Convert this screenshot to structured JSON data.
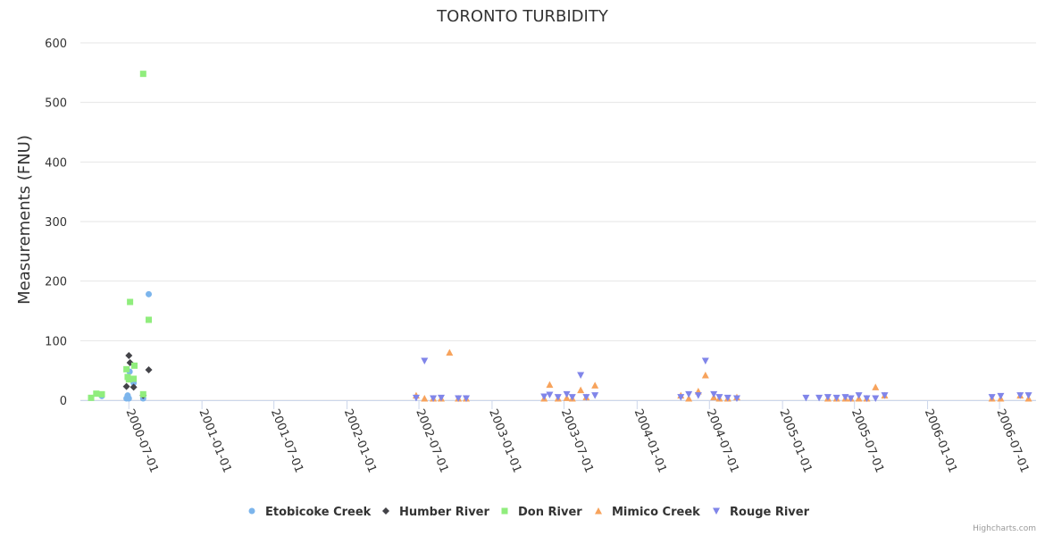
{
  "chart_data": {
    "type": "scatter",
    "title": "TORONTO TURBIDITY",
    "xlabel": "",
    "ylabel": "Measurements (FNU)",
    "xlim": [
      "2000-03-01",
      "2006-10-01"
    ],
    "ylim": [
      0,
      600
    ],
    "yticks": [
      0,
      100,
      200,
      300,
      400,
      500,
      600
    ],
    "xticks": [
      "2000-07-01",
      "2001-01-01",
      "2001-07-01",
      "2002-01-01",
      "2002-07-01",
      "2003-01-01",
      "2003-07-01",
      "2004-01-01",
      "2004-07-01",
      "2005-01-01",
      "2005-07-01",
      "2006-01-01",
      "2006-07-01"
    ],
    "grid": true,
    "legend_position": "bottom",
    "credits": "Highcharts.com",
    "series": [
      {
        "name": "Etobicoke Creek",
        "color": "#7cb5ec",
        "marker": "circle",
        "points": [
          [
            "2000-04-24",
            7
          ],
          [
            "2000-06-25",
            3
          ],
          [
            "2000-06-28",
            8
          ],
          [
            "2000-07-01",
            3
          ],
          [
            "2000-07-03",
            48
          ],
          [
            "2000-07-13",
            29
          ],
          [
            "2000-08-06",
            3
          ],
          [
            "2000-08-20",
            178
          ]
        ]
      },
      {
        "name": "Humber River",
        "color": "#434348",
        "marker": "diamond",
        "points": [
          [
            "2000-06-25",
            23
          ],
          [
            "2000-07-01",
            75
          ],
          [
            "2000-07-04",
            63
          ],
          [
            "2000-07-13",
            22
          ],
          [
            "2000-08-06",
            8
          ],
          [
            "2000-08-20",
            51
          ]
        ]
      },
      {
        "name": "Don River",
        "color": "#90ed7d",
        "marker": "square",
        "points": [
          [
            "2000-03-28",
            4
          ],
          [
            "2000-04-10",
            11
          ],
          [
            "2000-04-24",
            10
          ],
          [
            "2000-06-25",
            52
          ],
          [
            "2000-06-28",
            39
          ],
          [
            "2000-07-01",
            35
          ],
          [
            "2000-07-04",
            165
          ],
          [
            "2000-07-13",
            36
          ],
          [
            "2000-07-15",
            58
          ],
          [
            "2000-08-06",
            548
          ],
          [
            "2000-08-06",
            10
          ],
          [
            "2000-08-20",
            135
          ]
        ]
      },
      {
        "name": "Mimico Creek",
        "color": "#f7a35c",
        "marker": "triangle",
        "points": [
          [
            "2002-06-24",
            8
          ],
          [
            "2002-07-15",
            3
          ],
          [
            "2002-08-06",
            3
          ],
          [
            "2002-08-26",
            3
          ],
          [
            "2002-09-16",
            80
          ],
          [
            "2002-10-08",
            3
          ],
          [
            "2002-10-28",
            3
          ],
          [
            "2003-05-12",
            3
          ],
          [
            "2003-05-26",
            26
          ],
          [
            "2003-06-16",
            3
          ],
          [
            "2003-07-08",
            4
          ],
          [
            "2003-07-22",
            3
          ],
          [
            "2003-08-12",
            17
          ],
          [
            "2003-08-26",
            5
          ],
          [
            "2003-09-17",
            25
          ],
          [
            "2004-04-20",
            8
          ],
          [
            "2004-05-10",
            3
          ],
          [
            "2004-06-03",
            15
          ],
          [
            "2004-06-21",
            42
          ],
          [
            "2004-07-12",
            5
          ],
          [
            "2004-07-26",
            3
          ],
          [
            "2004-08-16",
            3
          ],
          [
            "2004-09-08",
            5
          ],
          [
            "2005-04-25",
            3
          ],
          [
            "2005-05-17",
            3
          ],
          [
            "2005-06-08",
            3
          ],
          [
            "2005-06-22",
            3
          ],
          [
            "2005-07-12",
            3
          ],
          [
            "2005-08-01",
            3
          ],
          [
            "2005-08-23",
            22
          ],
          [
            "2005-09-15",
            8
          ],
          [
            "2006-06-12",
            3
          ],
          [
            "2006-07-04",
            3
          ],
          [
            "2006-08-22",
            8
          ],
          [
            "2006-09-12",
            3
          ]
        ]
      },
      {
        "name": "Rouge River",
        "color": "#8085e9",
        "marker": "triangle-down",
        "points": [
          [
            "2002-06-24",
            4
          ],
          [
            "2002-07-15",
            66
          ],
          [
            "2002-08-06",
            3
          ],
          [
            "2002-08-26",
            4
          ],
          [
            "2002-10-08",
            3
          ],
          [
            "2002-10-28",
            3
          ],
          [
            "2003-05-12",
            6
          ],
          [
            "2003-05-26",
            9
          ],
          [
            "2003-06-16",
            5
          ],
          [
            "2003-07-08",
            10
          ],
          [
            "2003-07-22",
            5
          ],
          [
            "2003-08-12",
            42
          ],
          [
            "2003-08-26",
            5
          ],
          [
            "2003-09-17",
            8
          ],
          [
            "2004-04-20",
            5
          ],
          [
            "2004-05-10",
            10
          ],
          [
            "2004-06-03",
            8
          ],
          [
            "2004-06-21",
            66
          ],
          [
            "2004-07-12",
            10
          ],
          [
            "2004-07-26",
            5
          ],
          [
            "2004-08-16",
            4
          ],
          [
            "2004-09-08",
            3
          ],
          [
            "2005-03-01",
            4
          ],
          [
            "2005-04-03",
            4
          ],
          [
            "2005-04-25",
            5
          ],
          [
            "2005-05-17",
            4
          ],
          [
            "2005-06-08",
            5
          ],
          [
            "2005-06-22",
            3
          ],
          [
            "2005-07-12",
            8
          ],
          [
            "2005-08-01",
            3
          ],
          [
            "2005-08-23",
            3
          ],
          [
            "2005-09-15",
            8
          ],
          [
            "2006-06-12",
            5
          ],
          [
            "2006-07-04",
            7
          ],
          [
            "2006-08-22",
            8
          ],
          [
            "2006-09-12",
            8
          ]
        ]
      }
    ]
  }
}
